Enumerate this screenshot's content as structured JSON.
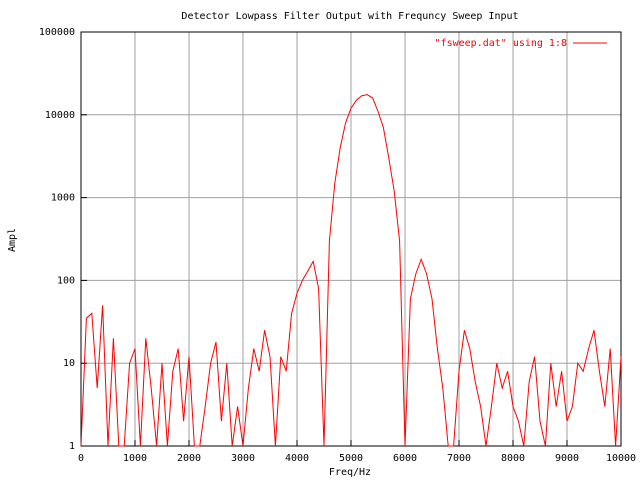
{
  "chart_data": {
    "type": "line",
    "title": "Detector Lowpass Filter Output with Frequncy Sweep Input",
    "x_label": "Freq/Hz",
    "y_label": "Ampl",
    "x": [
      0,
      100,
      200,
      300,
      400,
      500,
      600,
      700,
      800,
      900,
      1000,
      1100,
      1200,
      1300,
      1400,
      1500,
      1600,
      1700,
      1800,
      1900,
      2000,
      2100,
      2200,
      2300,
      2400,
      2500,
      2600,
      2700,
      2800,
      2900,
      3000,
      3100,
      3200,
      3300,
      3400,
      3500,
      3600,
      3700,
      3800,
      3900,
      4000,
      4100,
      4200,
      4300,
      4400,
      4500,
      4600,
      4700,
      4800,
      4900,
      5000,
      5100,
      5200,
      5300,
      5400,
      5500,
      5600,
      5700,
      5800,
      5900,
      6000,
      6100,
      6200,
      6300,
      6400,
      6500,
      6600,
      6700,
      6800,
      6900,
      7000,
      7100,
      7200,
      7300,
      7400,
      7500,
      7600,
      7700,
      7800,
      7900,
      8000,
      8100,
      8200,
      8300,
      8400,
      8500,
      8600,
      8700,
      8800,
      8900,
      9000,
      9100,
      9200,
      9300,
      9400,
      9500,
      9600,
      9700,
      9800,
      9900,
      10000
    ],
    "series": [
      {
        "name": "\"fsweep.dat\" using 1:8",
        "color": "#ff0000",
        "values": [
          1,
          35,
          40,
          5,
          50,
          1,
          20,
          1,
          1,
          10,
          15,
          1,
          20,
          5,
          1,
          10,
          1,
          8,
          15,
          2,
          12,
          1,
          1,
          3,
          10,
          18,
          2,
          10,
          1,
          3,
          1,
          5,
          15,
          8,
          25,
          12,
          1,
          12,
          8,
          40,
          70,
          100,
          130,
          170,
          80,
          1,
          300,
          1500,
          4000,
          8000,
          12000,
          15000,
          17000,
          17500,
          16000,
          11000,
          7000,
          3000,
          1200,
          300,
          1,
          60,
          120,
          180,
          120,
          60,
          15,
          5,
          1,
          1,
          8,
          25,
          15,
          6,
          3,
          1,
          3,
          10,
          5,
          8,
          3,
          2,
          1,
          6,
          12,
          2,
          1,
          10,
          3,
          8,
          2,
          3,
          10,
          8,
          15,
          25,
          8,
          3,
          15,
          1,
          12
        ]
      }
    ],
    "xlim": [
      0,
      10000
    ],
    "xticks": [
      0,
      1000,
      2000,
      3000,
      4000,
      5000,
      6000,
      7000,
      8000,
      9000,
      10000
    ],
    "ylim": [
      1,
      100000
    ],
    "yticks": [
      1,
      10,
      100,
      1000,
      10000,
      100000
    ],
    "log_y": true,
    "grid": true,
    "legend": "top-right"
  }
}
